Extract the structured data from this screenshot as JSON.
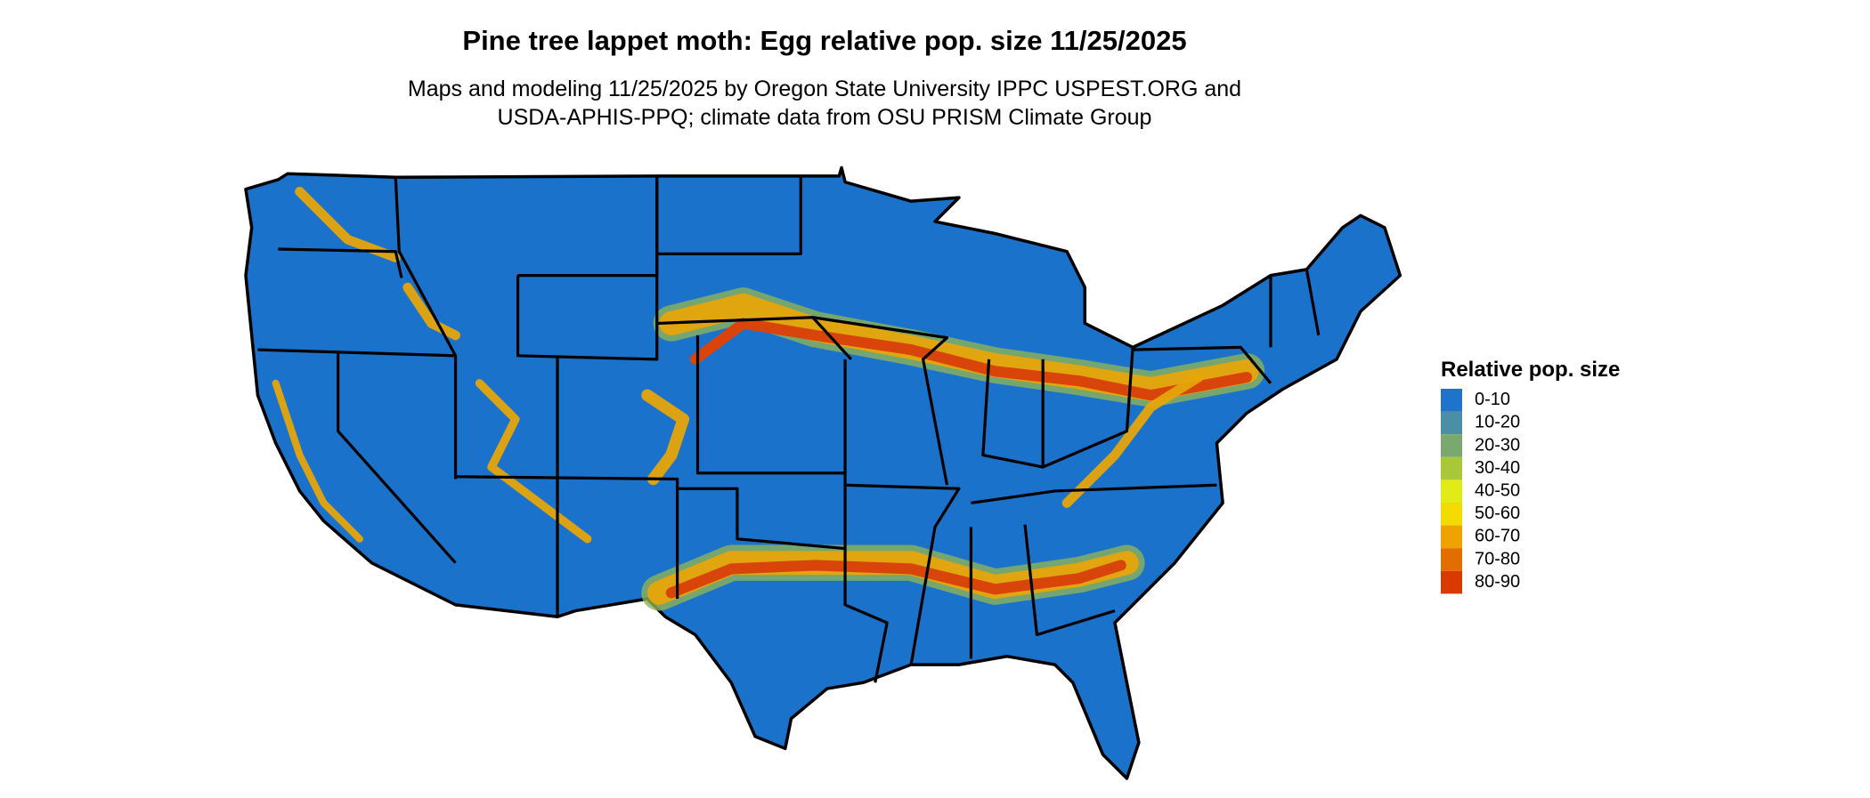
{
  "header": {
    "title": "Pine tree lappet moth: Egg relative pop. size 11/25/2025",
    "subtitle_lines": [
      "Maps and modeling 11/25/2025 by Oregon State University IPPC USPEST.ORG and",
      "USDA-APHIS-PPQ; climate data from OSU PRISM Climate Group"
    ]
  },
  "legend": {
    "title": "Relative pop. size",
    "items": [
      {
        "label": "0-10",
        "color": "#1f73c9"
      },
      {
        "label": "10-20",
        "color": "#4a8fa5"
      },
      {
        "label": "20-30",
        "color": "#7aa96f"
      },
      {
        "label": "30-40",
        "color": "#a8c83a"
      },
      {
        "label": "40-50",
        "color": "#e0eb18"
      },
      {
        "label": "50-60",
        "color": "#f2dc00"
      },
      {
        "label": "60-70",
        "color": "#eea300"
      },
      {
        "label": "70-80",
        "color": "#e26e00"
      },
      {
        "label": "80-90",
        "color": "#d83a00"
      }
    ]
  }
}
